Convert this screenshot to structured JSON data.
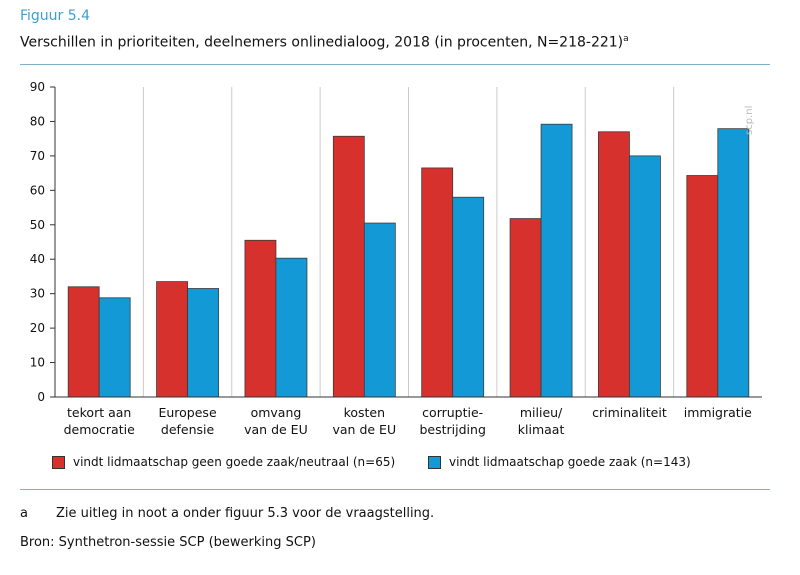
{
  "figure_label": "Figuur 5.4",
  "title": "Verschillen in prioriteiten, deelnemers onlinedialoog, 2018 (in procenten, N=218-221)",
  "title_superscript": "a",
  "watermark": "scp.nl",
  "note": {
    "letter": "a",
    "text": "Zie uitleg in noot a onder figuur 5.3 voor de vraagstelling."
  },
  "source": "Bron: Synthetron-sessie SCP (bewerking SCP)",
  "colors": {
    "series1": "#d7312e",
    "series2": "#139ad6",
    "grid": "#cccccc",
    "accent": "#3c9fd0"
  },
  "chart_data": {
    "type": "bar",
    "categories": [
      [
        "tekort aan",
        "democratie"
      ],
      [
        "Europese",
        "defensie"
      ],
      [
        "omvang",
        "van de EU"
      ],
      [
        "kosten",
        "van de EU"
      ],
      [
        "corruptie-",
        "bestrijding"
      ],
      [
        "milieu/",
        "klimaat"
      ],
      [
        "criminaliteit"
      ],
      [
        "immigratie"
      ]
    ],
    "series": [
      {
        "name": "vindt lidmaatschap geen goede zaak/neutraal (n=65)",
        "values": [
          32,
          33.5,
          45.5,
          75.7,
          66.5,
          51.8,
          77,
          64.3
        ]
      },
      {
        "name": "vindt lidmaatschap goede zaak (n=143)",
        "values": [
          28.8,
          31.5,
          40.3,
          50.5,
          58,
          79.2,
          70,
          77.9
        ]
      }
    ],
    "yticks": [
      0,
      10,
      20,
      30,
      40,
      50,
      60,
      70,
      80,
      90
    ],
    "ylim": [
      0,
      90
    ],
    "xlabel": "",
    "ylabel": "",
    "grid": "vertical separators",
    "legend_position": "bottom"
  }
}
